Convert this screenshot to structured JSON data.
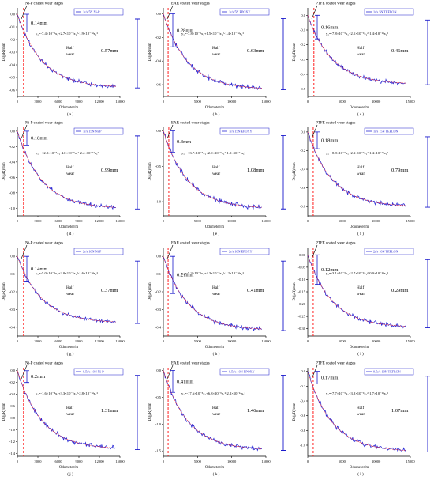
{
  "chart_data": [
    {
      "id": "a",
      "type": "line",
      "caption": "( a )",
      "stage_title": "Ni-P coated wear stages",
      "legend": "1r/s 5N Ni-P",
      "equation": "y₁=-7.4×10⁻⁵x₁+2.7×10⁻⁹x₁²-1.9×10⁻¹⁴x₁³",
      "early_depth": "0.14mm",
      "half_wear_label": "Half wear",
      "total_depth": "0.57mm",
      "ylabel": "Ds(μR)/mm",
      "xlabel": "Odometer/m",
      "x_ticks": [
        "0",
        "3000",
        "6000",
        "9000",
        "12000",
        "15000"
      ],
      "y_ticks": [
        "0.0",
        "-0.1",
        "-0.2",
        "-0.3",
        "-0.4",
        "-0.5",
        "-0.6"
      ],
      "xlim": [
        0,
        15000
      ],
      "ylim": [
        -0.65,
        0.05
      ],
      "dashed_x": 900,
      "end_value": -0.57,
      "early_value": -0.14
    },
    {
      "id": "b",
      "type": "line",
      "caption": "( b )",
      "stage_title": "EAR coated wear stages",
      "legend": "1r/s 5N EPOXY",
      "equation": "y₁=-7.8×10⁻⁵x₁+1.5×10⁻⁹x₁²-1.4×10⁻¹⁴x₁³",
      "early_depth": "0.28mm",
      "half_wear_label": "Half wear",
      "total_depth": "0.63mm",
      "ylabel": "Ds(μR)/mm",
      "xlabel": "Odometer/m",
      "x_ticks": [
        "0",
        "5000",
        "10000",
        "15000"
      ],
      "y_ticks": [
        "0.0",
        "-0.2",
        "-0.4",
        "-0.6"
      ],
      "xlim": [
        0,
        15000
      ],
      "ylim": [
        -0.7,
        0.05
      ],
      "dashed_x": 700,
      "end_value": -0.63,
      "early_value": -0.28
    },
    {
      "id": "c",
      "type": "line",
      "caption": "( c )",
      "stage_title": "PTFE coated wear stages",
      "legend": "1r/s 5N TEFLON",
      "equation": "y₁=-7.8×10⁻⁵x₁+2.5×10⁻⁹x₁²-1.4×10⁻¹⁴x₁³",
      "early_depth": "0.16mm",
      "half_wear_label": "Half wear",
      "total_depth": "0.46mm",
      "ylabel": "Ds(μR)/mm",
      "xlabel": "Odometer/m",
      "x_ticks": [
        "0",
        "5000",
        "10000",
        "15000"
      ],
      "y_ticks": [
        "0.0",
        "-0.1",
        "-0.2",
        "-0.3",
        "-0.4",
        "-0.5"
      ],
      "xlim": [
        0,
        15000
      ],
      "ylim": [
        -0.55,
        0.05
      ],
      "dashed_x": 900,
      "end_value": -0.46,
      "early_value": -0.16
    },
    {
      "id": "d",
      "type": "line",
      "caption": "( d )",
      "stage_title": "Ni-P coated wear stages",
      "legend": "1r/s 15N Ni-P",
      "equation": "y₁=-12.8×10⁻⁵x₁-4.0×10⁻⁹x₁²-2.4×10⁻¹⁴x₁³",
      "early_depth": "0.18mm",
      "half_wear_label": "Half wear",
      "total_depth": "0.99mm",
      "ylabel": "Ds(μR)/mm",
      "xlabel": "Odometer/m",
      "x_ticks": [
        "0",
        "3000",
        "6000",
        "9000",
        "12000",
        "15000"
      ],
      "y_ticks": [
        "0.0",
        "-0.2",
        "-0.4",
        "-0.6",
        "-0.8",
        "-1.0"
      ],
      "xlim": [
        0,
        15000
      ],
      "ylim": [
        -1.1,
        0.05
      ],
      "dashed_x": 900,
      "end_value": -0.99,
      "early_value": -0.18
    },
    {
      "id": "e",
      "type": "line",
      "caption": "( e )",
      "stage_title": "EAR coated wear stages",
      "legend": "1r/s 15N EPOXY",
      "equation": "y₁=-13.7×10⁻⁵x₁+2.0×10⁻⁹x₁²-1.9×10⁻¹⁴x₁³",
      "early_depth": "0.3mm",
      "half_wear_label": "Half wear",
      "total_depth": "1.08mm",
      "ylabel": "Ds(μR)/mm",
      "xlabel": "Odometer/m",
      "x_ticks": [
        "0",
        "5000",
        "10000",
        "15000"
      ],
      "y_ticks": [
        "0.0",
        "-0.5",
        "-1.0"
      ],
      "xlim": [
        0,
        15000
      ],
      "ylim": [
        -1.2,
        0.05
      ],
      "dashed_x": 800,
      "end_value": -1.08,
      "early_value": -0.3
    },
    {
      "id": "f",
      "type": "line",
      "caption": "( f )",
      "stage_title": "PTFE coated wear stages",
      "legend": "1r/s 15N TEFLON",
      "equation": "y₁=-8.8×10⁻⁵x₁+2.3×10⁻⁹x₁²-1.4×10⁻¹⁴x₁³",
      "early_depth": "0.18mm",
      "half_wear_label": "Half wear",
      "total_depth": "0.79mm",
      "ylabel": "Ds(μR)/mm",
      "xlabel": "Odometer/m",
      "x_ticks": [
        "0",
        "5000",
        "10000",
        "15000"
      ],
      "y_ticks": [
        "0.0",
        "-0.2",
        "-0.4",
        "-0.6",
        "-0.8"
      ],
      "xlim": [
        0,
        15000
      ],
      "ylim": [
        -0.9,
        0.05
      ],
      "dashed_x": 800,
      "end_value": -0.79,
      "early_value": -0.18
    },
    {
      "id": "g",
      "type": "line",
      "caption": "( g )",
      "stage_title": "Ni-P coated wear stages",
      "legend": "2r/s 10N Ni-P",
      "equation": "y₁=-5.0×10⁻⁵x₁+2.0×10⁻⁹x₁²-1.6×10⁻¹⁴x₁³",
      "early_depth": "0.14mm",
      "half_wear_label": "Half wear",
      "total_depth": "0.37mm",
      "ylabel": "Ds(μR)/mm",
      "xlabel": "Odometer/m",
      "x_ticks": [
        "0",
        "3000",
        "6000",
        "9000",
        "12000",
        "15000"
      ],
      "y_ticks": [
        "0.0",
        "-0.1",
        "-0.2",
        "-0.3",
        "-0.4"
      ],
      "xlim": [
        0,
        15000
      ],
      "ylim": [
        -0.45,
        0.05
      ],
      "dashed_x": 900,
      "end_value": -0.37,
      "early_value": -0.14
    },
    {
      "id": "h",
      "type": "line",
      "caption": "( h )",
      "stage_title": "EAR coated wear stages",
      "legend": "2r/s 10N EPOXY",
      "equation": "y₁=-5.3×10⁻⁵x₁+4.3×10⁻⁹x₁²-1.2×10⁻¹⁴x₁³",
      "early_depth": "0.21mm",
      "half_wear_label": "Half wear",
      "total_depth": "0.41mm",
      "ylabel": "Ds(μR)/mm",
      "xlabel": "Odometer/m",
      "x_ticks": [
        "0",
        "5000",
        "10000",
        "15000"
      ],
      "y_ticks": [
        "0.0",
        "-0.1",
        "-0.2",
        "-0.3",
        "-0.4"
      ],
      "xlim": [
        0,
        15000
      ],
      "ylim": [
        -0.45,
        0.05
      ],
      "dashed_x": 700,
      "end_value": -0.41,
      "early_value": -0.21
    },
    {
      "id": "i",
      "type": "line",
      "caption": "( i )",
      "stage_title": "PTFE coated wear stages",
      "legend": "2r/s 10N TEFLON",
      "equation": "y₁=-3.1×10⁻⁵x₁+2.7×10⁻⁹x₁²-0.9×10⁻¹⁴x₁³",
      "early_depth": "0.12mm",
      "half_wear_label": "Half wear",
      "total_depth": "0.29mm",
      "ylabel": "Ds(μR)/mm",
      "xlabel": "Odometer/m",
      "x_ticks": [
        "0",
        "5000",
        "10000",
        "15000"
      ],
      "y_ticks": [
        "0.00",
        "-0.05",
        "-0.10",
        "-0.15",
        "-0.20",
        "-0.25",
        "-0.30"
      ],
      "xlim": [
        0,
        15000
      ],
      "ylim": [
        -0.33,
        0.03
      ],
      "dashed_x": 800,
      "end_value": -0.29,
      "early_value": -0.12
    },
    {
      "id": "j",
      "type": "line",
      "caption": "( j )",
      "stage_title": "Ni-P coated wear stages",
      "legend": "0.5r/s 10N Ni-P",
      "equation": "y₁=-1.6×10⁻⁴x₁+3.3×10⁻⁹x₁²-2.8×10⁻¹⁴x₁³",
      "early_depth": "0.2mm",
      "half_wear_label": "Half wear",
      "total_depth": "1.31mm",
      "ylabel": "Ds(μR)/mm",
      "xlabel": "Odometer/m",
      "x_ticks": [
        "0",
        "3000",
        "6000",
        "9000",
        "12000",
        "15000"
      ],
      "y_ticks": [
        "0.0",
        "-0.2",
        "-0.4",
        "-0.6",
        "-0.8",
        "-1.0",
        "-1.2",
        "-1.4"
      ],
      "xlim": [
        0,
        15000
      ],
      "ylim": [
        -1.45,
        0.05
      ],
      "dashed_x": 900,
      "end_value": -1.31,
      "early_value": -0.2
    },
    {
      "id": "k",
      "type": "line",
      "caption": "( k )",
      "stage_title": "EAR coated wear stages",
      "legend": "0.5r/s 10N EPOXY",
      "equation": "y₁=-17.6×10⁻⁵x₁+6.8×10⁻⁹x₁²-2.2×10⁻¹⁴x₁³",
      "early_depth": "0.41mm",
      "half_wear_label": "Half wear",
      "total_depth": "1.46mm",
      "ylabel": "Ds(μR)/mm",
      "xlabel": "Odometer/m",
      "x_ticks": [
        "0",
        "5000",
        "10000",
        "15000"
      ],
      "y_ticks": [
        "0.0",
        "-0.5",
        "-1.0",
        "-1.5"
      ],
      "xlim": [
        0,
        15000
      ],
      "ylim": [
        -1.6,
        0.05
      ],
      "dashed_x": 700,
      "end_value": -1.46,
      "early_value": -0.41
    },
    {
      "id": "l",
      "type": "line",
      "caption": "( l )",
      "stage_title": "PTFE coated wear stages",
      "legend": "0.5r/s 10N TEFLON",
      "equation": "y₁=-7.7×10⁻⁵x₁+3.8×10⁻⁹x₁²-1.7×10⁻¹⁴x₁³",
      "early_depth": "0.17mm",
      "half_wear_label": "Half wear",
      "total_depth": "1.07mm",
      "ylabel": "Ds(μR)/mm",
      "xlabel": "Odometer/m",
      "x_ticks": [
        "0",
        "5000",
        "10000",
        "15000"
      ],
      "y_ticks": [
        "0.0",
        "-0.2",
        "-0.4",
        "-0.6",
        "-0.8",
        "-1.0"
      ],
      "xlim": [
        0,
        15000
      ],
      "ylim": [
        -1.15,
        0.05
      ],
      "dashed_x": 800,
      "end_value": -1.07,
      "early_value": -0.17
    }
  ],
  "colors": {
    "data_line": "#2b2bd6",
    "fit_line": "#ff3030",
    "dashed_marker": "#ff2020",
    "bracket": "#1a1acc",
    "text": "#000000",
    "axis": "#000000"
  }
}
